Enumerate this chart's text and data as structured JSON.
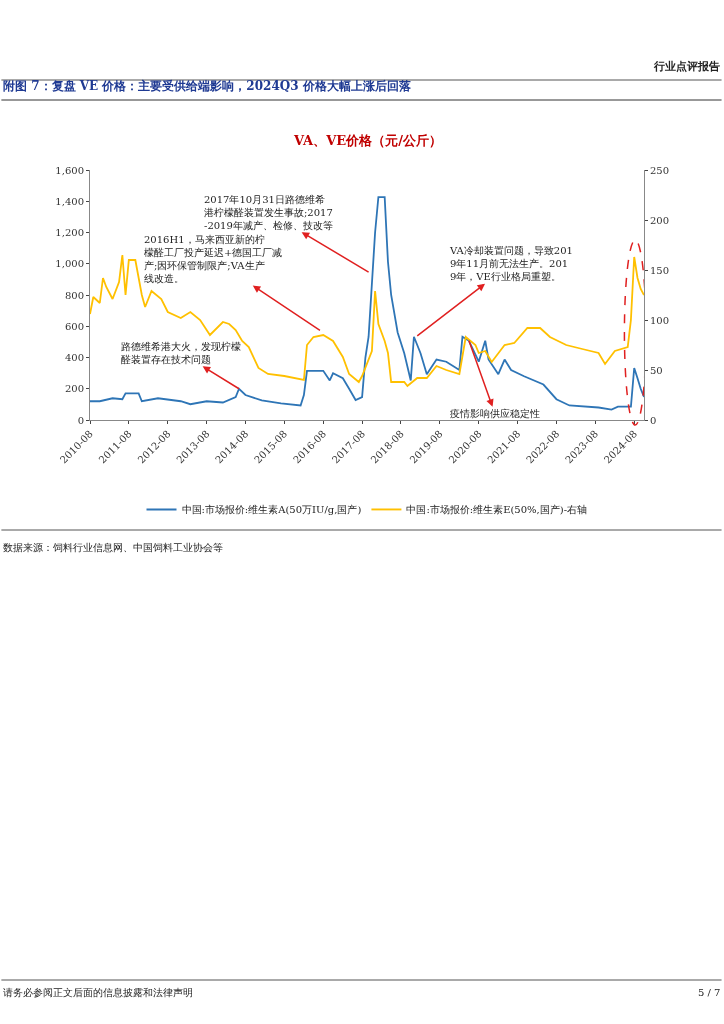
{
  "chart_data": {
    "type": "line",
    "title": "附图 7：复盘 VE 价格：主要受供给端影响，2024Q3 价格大幅上涨后回落",
    "subtitle": "VA、VE价格（元/公斤）",
    "series": [
      {
        "name": "中国:市场报价:维生素A(50万IU/g,国产)",
        "color": "#2e75b6",
        "x": [
          "2010-08",
          "2010-11",
          "2011-03",
          "2011-06",
          "2011-07",
          "2011-11",
          "2011-12",
          "2012-05",
          "2012-12",
          "2013-03",
          "2013-08",
          "2014-01",
          "2014-05",
          "2014-06",
          "2014-08",
          "2015-01",
          "2015-07",
          "2016-01",
          "2016-02",
          "2016-03",
          "2016-08",
          "2016-10",
          "2016-11",
          "2017-02",
          "2017-04",
          "2017-06",
          "2017-08",
          "2017-09",
          "2017-10",
          "2017-12",
          "2018-01",
          "2018-03",
          "2018-04",
          "2018-05",
          "2018-07",
          "2018-09",
          "2018-11",
          "2018-12",
          "2019-02",
          "2019-04",
          "2019-07",
          "2019-10",
          "2020-02",
          "2020-03",
          "2020-05",
          "2020-08",
          "2020-10",
          "2020-11",
          "2021-02",
          "2021-04",
          "2021-06",
          "2021-10",
          "2022-04",
          "2022-08",
          "2022-12",
          "2023-09",
          "2024-01",
          "2024-03",
          "2024-07",
          "2024-08",
          "2024-09",
          "2024-10",
          "2024-11"
        ],
        "values": [
          120,
          120,
          139,
          133,
          170,
          170,
          120,
          139,
          120,
          101,
          120,
          112,
          147,
          200,
          160,
          125,
          107,
          93,
          160,
          315,
          315,
          253,
          299,
          267,
          200,
          128,
          147,
          400,
          533,
          1200,
          1427,
          1427,
          1013,
          800,
          560,
          427,
          253,
          533,
          427,
          293,
          387,
          373,
          320,
          533,
          507,
          373,
          507,
          387,
          293,
          387,
          320,
          280,
          227,
          133,
          93,
          80,
          67,
          85,
          85,
          333,
          267,
          200,
          147
        ]
      },
      {
        "name": "中国:市场报价:维生素E(50%,国产)-右轴",
        "color": "#ffc000",
        "axis": "y2",
        "x": [
          "2010-08",
          "2010-09",
          "2010-11",
          "2010-12",
          "2011-01",
          "2011-03",
          "2011-05",
          "2011-06",
          "2011-07",
          "2011-08",
          "2011-10",
          "2011-12",
          "2012-01",
          "2012-03",
          "2012-06",
          "2012-08",
          "2012-12",
          "2013-03",
          "2013-06",
          "2013-09",
          "2014-01",
          "2014-03",
          "2014-05",
          "2014-07",
          "2014-09",
          "2014-12",
          "2015-03",
          "2015-08",
          "2016-02",
          "2016-03",
          "2016-05",
          "2016-08",
          "2016-11",
          "2017-02",
          "2017-04",
          "2017-07",
          "2017-08",
          "2017-11",
          "2017-12",
          "2018-01",
          "2018-03",
          "2018-04",
          "2018-05",
          "2018-09",
          "2018-10",
          "2019-01",
          "2019-04",
          "2019-07",
          "2019-10",
          "2020-02",
          "2020-04",
          "2020-07",
          "2020-08",
          "2020-10",
          "2020-12",
          "2021-04",
          "2021-07",
          "2021-11",
          "2022-03",
          "2022-06",
          "2022-11",
          "2023-04",
          "2023-09",
          "2023-11",
          "2024-02",
          "2024-06",
          "2024-07",
          "2024-08",
          "2024-09",
          "2024-10",
          "2024-11"
        ],
        "values": [
          106,
          123,
          117,
          142,
          133,
          121,
          138,
          165,
          125,
          160,
          160,
          125,
          113,
          129,
          121,
          108,
          102,
          108,
          100,
          85,
          98,
          96,
          90,
          79,
          73,
          52,
          46,
          44,
          40,
          75,
          83,
          85,
          79,
          63,
          46,
          38,
          44,
          69,
          129,
          96,
          79,
          67,
          38,
          38,
          34,
          42,
          42,
          54,
          50,
          46,
          83,
          75,
          67,
          69,
          58,
          75,
          77,
          92,
          92,
          83,
          75,
          71,
          67,
          56,
          69,
          73,
          100,
          163,
          142,
          131,
          125
        ]
      }
    ],
    "xlim": [
      "2010-08",
      "2024-11"
    ],
    "xticks": [
      "2010-08",
      "2011-08",
      "2012-08",
      "2013-08",
      "2014-08",
      "2015-08",
      "2016-08",
      "2017-08",
      "2018-08",
      "2019-08",
      "2020-08",
      "2021-08",
      "2022-08",
      "2023-08",
      "2024-08"
    ],
    "ylim": [
      0,
      1600
    ],
    "yticks": [
      {
        "value": 0,
        "label": "0"
      },
      {
        "value": 200,
        "label": "200"
      },
      {
        "value": 400,
        "label": "400"
      },
      {
        "value": 600,
        "label": "600"
      },
      {
        "value": 800,
        "label": "800"
      },
      {
        "value": 1000,
        "label": "1,000"
      },
      {
        "value": 1200,
        "label": "1,200"
      },
      {
        "value": 1400,
        "label": "1,400"
      },
      {
        "value": 1600,
        "label": "1,600"
      }
    ],
    "y2lim": [
      0,
      250
    ],
    "y2ticks": [
      0,
      50,
      100,
      150,
      200,
      250
    ],
    "annotations": [
      {
        "text": "2017年10月31日路德维希港柠檬醛装置发生事故;2017-2019年减产、检修、技改等",
        "x": "2017-10",
        "y": 947
      },
      {
        "text": "2016H1，马来西亚新的柠檬醛工厂投产延迟+德国工厂减产;因环保管制限产;VA生产线改造。",
        "x": "2016-07",
        "y": 573
      },
      {
        "text": "VA冷却装置问题，导致2019年11月前无法生产。2019年，VE行业格局重塑。",
        "x": "2019-01",
        "y": 539
      },
      {
        "text": "路德维希港大火，发现柠檬醛装置存在技术问题",
        "x": "2014-06",
        "y": 200
      },
      {
        "text": "疫情影响供应稳定性",
        "x": "2020-05",
        "y": 507
      },
      "行业点评报告",
      "数据来源：饲料行业信息网、中国饲料工业协会等",
      "请务必参阅正文后面的信息披露和法律声明",
      "5 / 7"
    ],
    "legend": "bottom",
    "marker": "none",
    "line_style": "solid"
  }
}
